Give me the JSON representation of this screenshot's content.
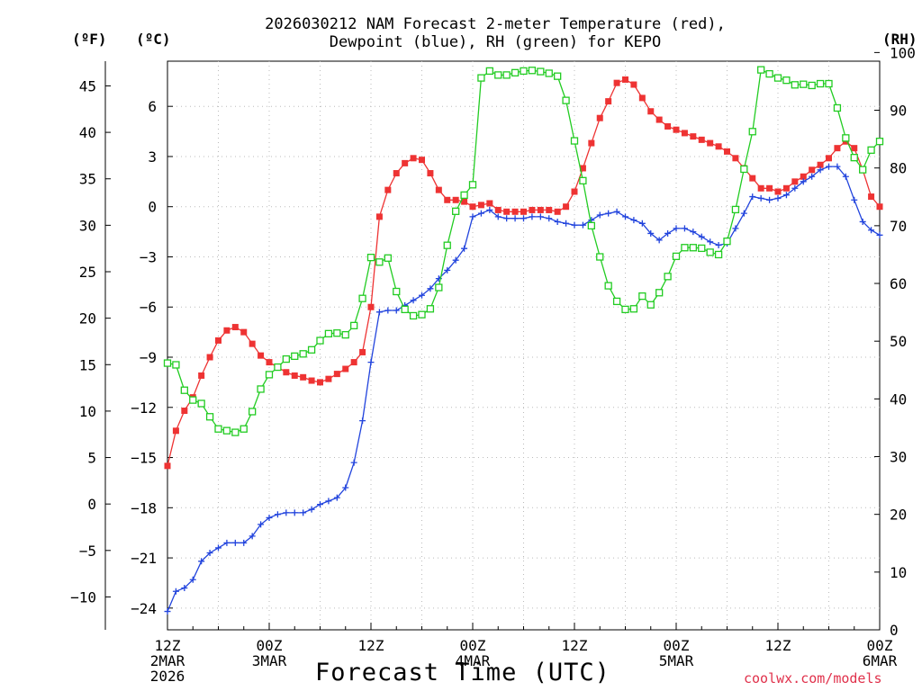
{
  "title": {
    "line1": "2026030212 NAM Forecast 2-meter Temperature (red),",
    "line2": "Dewpoint (blue), RH (green) for KEPO"
  },
  "axis_units": {
    "fahrenheit": "(ºF)",
    "celsius": "(ºC)",
    "rh": "(RH)"
  },
  "xlabel": "Forecast Time (UTC)",
  "credit": "coolwx.com/models",
  "colors": {
    "temperature": "#ee3333",
    "dewpoint": "#2244dd",
    "rh": "#22cc22",
    "grid": "#bbbbbb"
  },
  "chart_data": {
    "type": "line",
    "title": "2026030212 NAM Forecast 2-meter Temperature (red), Dewpoint (blue), RH (green) for KEPO",
    "xlabel": "Forecast Time (UTC)",
    "x_unit": "forecast hour from 2026-03-02 12Z",
    "xlim": [
      0,
      84
    ],
    "x_ticks": [
      {
        "hour": 0,
        "lines": [
          "12Z",
          "2MAR",
          "2026"
        ]
      },
      {
        "hour": 12,
        "lines": [
          "00Z",
          "3MAR"
        ]
      },
      {
        "hour": 24,
        "lines": [
          "12Z"
        ]
      },
      {
        "hour": 36,
        "lines": [
          "00Z",
          "4MAR"
        ]
      },
      {
        "hour": 48,
        "lines": [
          "12Z"
        ]
      },
      {
        "hour": 60,
        "lines": [
          "00Z",
          "5MAR"
        ]
      },
      {
        "hour": 72,
        "lines": [
          "12Z"
        ]
      },
      {
        "hour": 84,
        "lines": [
          "00Z",
          "6MAR"
        ]
      }
    ],
    "y_celsius": {
      "label": "(ºC)",
      "range": [
        -25.3,
        8.7
      ],
      "ticks": [
        6,
        3,
        0,
        -3,
        -6,
        -9,
        -12,
        -15,
        -18,
        -21,
        -24
      ]
    },
    "y_fahrenheit": {
      "label": "(ºF)",
      "ticks": [
        45,
        40,
        35,
        30,
        25,
        20,
        15,
        10,
        5,
        0,
        -5,
        -10
      ]
    },
    "y_rh": {
      "label": "(RH)",
      "range": [
        0,
        98.5
      ],
      "ticks": [
        0,
        10,
        20,
        30,
        40,
        50,
        60,
        70,
        80,
        90,
        100
      ]
    },
    "series": [
      {
        "name": "Temperature",
        "axis": "celsius",
        "marker": "filled-square",
        "x": [
          0,
          1,
          2,
          3,
          4,
          5,
          6,
          7,
          8,
          9,
          10,
          11,
          12,
          13,
          14,
          15,
          16,
          17,
          18,
          19,
          20,
          21,
          22,
          23,
          24,
          25,
          26,
          27,
          28,
          29,
          30,
          31,
          32,
          33,
          34,
          35,
          36,
          37,
          38,
          39,
          40,
          41,
          42,
          43,
          44,
          45,
          46,
          47,
          48,
          49,
          50,
          51,
          52,
          53,
          54,
          55,
          56,
          57,
          58,
          59,
          60,
          61,
          62,
          63,
          64,
          65,
          66,
          67,
          68,
          69,
          70,
          71,
          72,
          73,
          74,
          75,
          76,
          77,
          78,
          79,
          80,
          81,
          82,
          83,
          84
        ],
        "values": [
          -15.5,
          -13.4,
          -12.2,
          -11.4,
          -10.1,
          -9.0,
          -8.0,
          -7.4,
          -7.2,
          -7.5,
          -8.2,
          -8.9,
          -9.3,
          -9.6,
          -9.9,
          -10.1,
          -10.2,
          -10.4,
          -10.5,
          -10.3,
          -10.0,
          -9.7,
          -9.3,
          -8.7,
          -6.0,
          -0.6,
          1.0,
          2.0,
          2.6,
          2.9,
          2.8,
          2.0,
          1.0,
          0.4,
          0.4,
          0.3,
          0.0,
          0.1,
          0.2,
          -0.2,
          -0.3,
          -0.3,
          -0.3,
          -0.2,
          -0.2,
          -0.2,
          -0.3,
          0.0,
          0.9,
          2.3,
          3.8,
          5.3,
          6.3,
          7.4,
          7.6,
          7.3,
          6.5,
          5.7,
          5.2,
          4.8,
          4.6,
          4.4,
          4.2,
          4.0,
          3.8,
          3.6,
          3.3,
          2.9,
          2.3,
          1.7,
          1.1,
          1.1,
          0.9,
          1.1,
          1.5,
          1.8,
          2.2,
          2.5,
          2.9,
          3.5,
          3.9,
          3.5,
          2.2,
          0.6,
          0.0
        ]
      },
      {
        "name": "Dewpoint",
        "axis": "celsius",
        "marker": "plus",
        "x": [
          0,
          1,
          2,
          3,
          4,
          5,
          6,
          7,
          8,
          9,
          10,
          11,
          12,
          13,
          14,
          15,
          16,
          17,
          18,
          19,
          20,
          21,
          22,
          23,
          24,
          25,
          26,
          27,
          28,
          29,
          30,
          31,
          32,
          33,
          34,
          35,
          36,
          37,
          38,
          39,
          40,
          41,
          42,
          43,
          44,
          45,
          46,
          47,
          48,
          49,
          50,
          51,
          52,
          53,
          54,
          55,
          56,
          57,
          58,
          59,
          60,
          61,
          62,
          63,
          64,
          65,
          66,
          67,
          68,
          69,
          70,
          71,
          72,
          73,
          74,
          75,
          76,
          77,
          78,
          79,
          80,
          81,
          82,
          83,
          84
        ],
        "values": [
          -24.2,
          -23.0,
          -22.8,
          -22.3,
          -21.2,
          -20.7,
          -20.4,
          -20.1,
          -20.1,
          -20.1,
          -19.7,
          -19.0,
          -18.6,
          -18.4,
          -18.3,
          -18.3,
          -18.3,
          -18.1,
          -17.8,
          -17.6,
          -17.4,
          -16.8,
          -15.3,
          -12.8,
          -9.3,
          -6.3,
          -6.2,
          -6.2,
          -5.9,
          -5.6,
          -5.3,
          -4.9,
          -4.3,
          -3.8,
          -3.2,
          -2.5,
          -0.6,
          -0.4,
          -0.2,
          -0.6,
          -0.7,
          -0.7,
          -0.7,
          -0.6,
          -0.6,
          -0.7,
          -0.9,
          -1.0,
          -1.1,
          -1.1,
          -0.8,
          -0.5,
          -0.4,
          -0.3,
          -0.6,
          -0.8,
          -1.0,
          -1.6,
          -2.0,
          -1.6,
          -1.3,
          -1.3,
          -1.5,
          -1.8,
          -2.1,
          -2.3,
          -2.2,
          -1.3,
          -0.4,
          0.6,
          0.5,
          0.4,
          0.5,
          0.7,
          1.1,
          1.5,
          1.8,
          2.2,
          2.4,
          2.4,
          1.8,
          0.4,
          -0.9,
          -1.4,
          -1.7
        ]
      },
      {
        "name": "RH",
        "axis": "rh",
        "marker": "open-square",
        "x": [
          0,
          1,
          2,
          3,
          4,
          5,
          6,
          7,
          8,
          9,
          10,
          11,
          12,
          13,
          14,
          15,
          16,
          17,
          18,
          19,
          20,
          21,
          22,
          23,
          24,
          25,
          26,
          27,
          28,
          29,
          30,
          31,
          32,
          33,
          34,
          35,
          36,
          37,
          38,
          39,
          40,
          41,
          42,
          43,
          44,
          45,
          46,
          47,
          48,
          49,
          50,
          51,
          52,
          53,
          54,
          55,
          56,
          57,
          58,
          59,
          60,
          61,
          62,
          63,
          64,
          65,
          66,
          67,
          68,
          69,
          70,
          71,
          72,
          73,
          74,
          75,
          76,
          77,
          78,
          79,
          80,
          81,
          82,
          83,
          84
        ],
        "values": [
          46.2,
          45.9,
          41.5,
          39.8,
          39.2,
          36.9,
          34.8,
          34.5,
          34.2,
          34.8,
          37.8,
          41.7,
          44.2,
          45.5,
          46.9,
          47.4,
          47.8,
          48.5,
          50.1,
          51.3,
          51.4,
          51.1,
          52.7,
          57.4,
          64.5,
          63.7,
          64.4,
          58.6,
          55.5,
          54.4,
          54.6,
          55.6,
          59.3,
          66.6,
          72.5,
          75.3,
          77.1,
          95.6,
          96.8,
          96.1,
          96.1,
          96.5,
          96.8,
          96.9,
          96.7,
          96.4,
          95.9,
          91.7,
          84.7,
          77.8,
          70.0,
          64.6,
          59.6,
          56.9,
          55.5,
          55.6,
          57.8,
          56.3,
          58.4,
          61.2,
          64.7,
          66.2,
          66.2,
          66.1,
          65.4,
          65.0,
          67.3,
          72.8,
          79.8,
          86.3,
          97.0,
          96.3,
          95.6,
          95.2,
          94.4,
          94.5,
          94.3,
          94.6,
          94.6,
          90.4,
          85.2,
          81.8,
          79.7,
          83.1,
          84.6
        ]
      }
    ]
  }
}
